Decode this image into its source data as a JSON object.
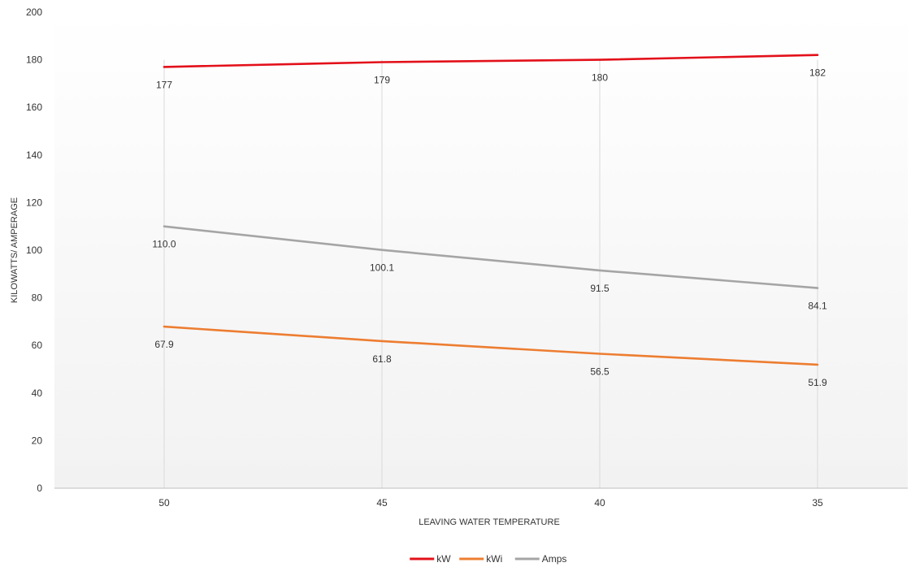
{
  "chart_data": {
    "type": "line",
    "categories": [
      "50",
      "45",
      "40",
      "35"
    ],
    "series": [
      {
        "name": "kW",
        "values": [
          177,
          179,
          180,
          182
        ],
        "labels": [
          "177",
          "179",
          "180",
          "182"
        ],
        "color": "#e3101a"
      },
      {
        "name": "kWi",
        "values": [
          67.9,
          61.8,
          56.5,
          51.9
        ],
        "labels": [
          "67.9",
          "61.8",
          "56.5",
          "51.9"
        ],
        "color": "#ed7d31"
      },
      {
        "name": "Amps",
        "values": [
          110.0,
          100.1,
          91.5,
          84.1
        ],
        "labels": [
          "110.0",
          "100.1",
          "91.5",
          "84.1"
        ],
        "color": "#a5a5a5"
      }
    ],
    "title": "",
    "xlabel": "LEAVING WATER TEMPERATURE",
    "ylabel": "KILOWATTS/ AMPERAGE",
    "ylim": [
      0,
      200
    ],
    "yticks": [
      "0",
      "20",
      "40",
      "60",
      "80",
      "100",
      "120",
      "140",
      "160",
      "180",
      "200"
    ],
    "grid": "vertical",
    "legend": "bottom-center",
    "background_gradient": [
      "#ffffff",
      "#f2f2f2"
    ]
  }
}
